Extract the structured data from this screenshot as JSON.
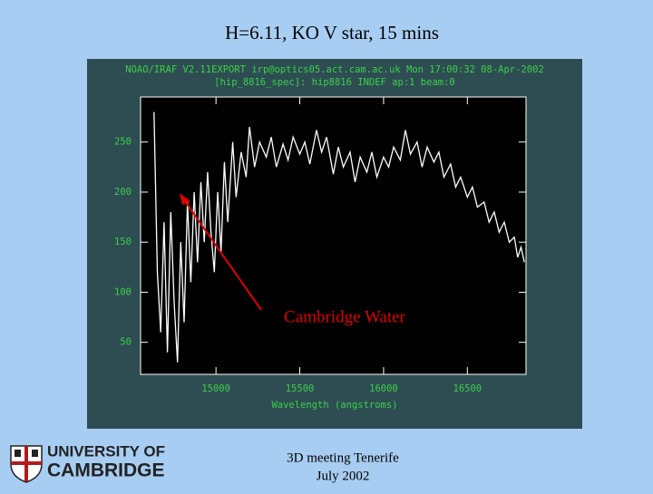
{
  "slide": {
    "title": "H=6.11, KO V star, 15 mins",
    "logo": [
      "UNIVERSITY OF",
      "CAMBRIDGE"
    ],
    "footer": [
      "3D meeting Tenerife",
      "July 2002"
    ]
  },
  "chart_data": {
    "type": "line",
    "header": [
      "NOAO/IRAF V2.11EXPORT irp@optics05.act.cam.ac.uk Mon 17:00:32 08-Apr-2002",
      "[hip_8816_spec]: hip8816 INDEF ap:1 beam:0"
    ],
    "x_label": "Wavelength (angstroms)",
    "annotation": "Cambridge Water",
    "color": "#ffffff",
    "xlim": [
      14550,
      16850
    ],
    "ylim": [
      18,
      295
    ],
    "xticks": [
      15000,
      15500,
      16000,
      16500
    ],
    "yticks": [
      50,
      100,
      150,
      200,
      250
    ],
    "x": [
      14630,
      14650,
      14670,
      14690,
      14710,
      14730,
      14750,
      14770,
      14790,
      14810,
      14830,
      14850,
      14870,
      14890,
      14910,
      14930,
      14950,
      14970,
      14990,
      15010,
      15030,
      15050,
      15070,
      15100,
      15120,
      15150,
      15180,
      15200,
      15230,
      15260,
      15300,
      15330,
      15360,
      15400,
      15430,
      15460,
      15500,
      15530,
      15560,
      15600,
      15630,
      15660,
      15700,
      15730,
      15760,
      15800,
      15830,
      15860,
      15900,
      15930,
      15960,
      16000,
      16030,
      16060,
      16100,
      16130,
      16160,
      16200,
      16230,
      16260,
      16300,
      16330,
      16360,
      16400,
      16430,
      16460,
      16500,
      16530,
      16560,
      16600,
      16630,
      16660,
      16690,
      16720,
      16750,
      16780,
      16800,
      16820,
      16840
    ],
    "values": [
      280,
      120,
      60,
      170,
      40,
      180,
      90,
      30,
      150,
      70,
      190,
      110,
      200,
      130,
      210,
      150,
      220,
      160,
      120,
      200,
      140,
      230,
      170,
      250,
      195,
      240,
      215,
      265,
      225,
      250,
      235,
      255,
      225,
      248,
      232,
      255,
      238,
      250,
      228,
      262,
      240,
      255,
      218,
      245,
      225,
      240,
      210,
      235,
      220,
      240,
      215,
      235,
      225,
      245,
      232,
      262,
      238,
      250,
      225,
      245,
      230,
      240,
      215,
      228,
      205,
      215,
      195,
      205,
      185,
      190,
      170,
      180,
      160,
      170,
      150,
      155,
      135,
      145,
      130
    ]
  }
}
